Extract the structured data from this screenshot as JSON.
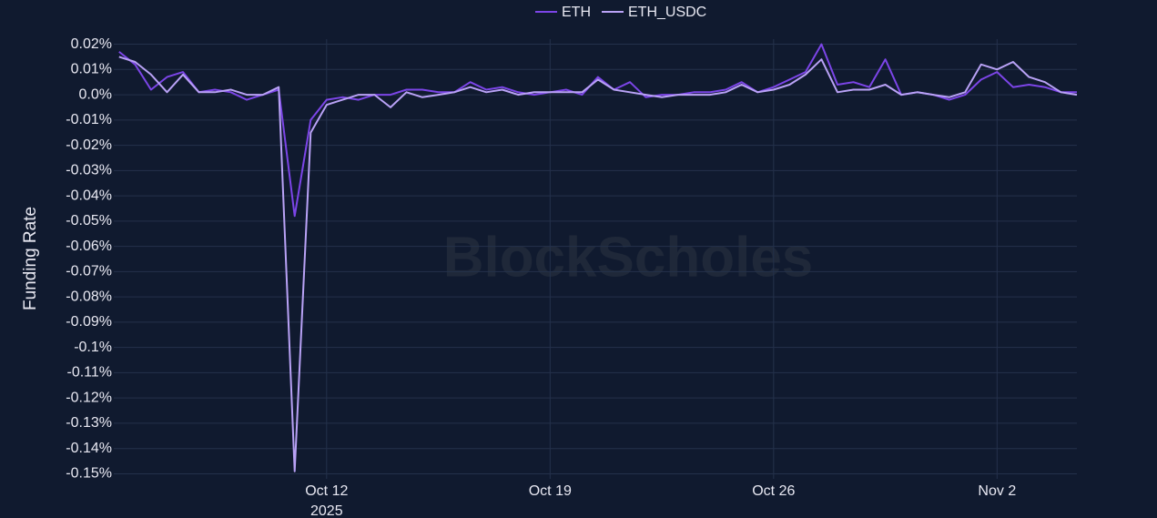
{
  "chart_data": {
    "type": "line",
    "ylabel": "Funding Rate",
    "watermark": "BlockScholes",
    "legend": "top",
    "grid": true,
    "x": [
      "2025-10-05T12:00",
      "2025-10-06T00:00",
      "2025-10-06T12:00",
      "2025-10-07T00:00",
      "2025-10-07T12:00",
      "2025-10-08T00:00",
      "2025-10-08T12:00",
      "2025-10-09T00:00",
      "2025-10-09T12:00",
      "2025-10-10T00:00",
      "2025-10-10T12:00",
      "2025-10-11T00:00",
      "2025-10-11T12:00",
      "2025-10-12T00:00",
      "2025-10-12T12:00",
      "2025-10-13T00:00",
      "2025-10-13T12:00",
      "2025-10-14T00:00",
      "2025-10-14T12:00",
      "2025-10-15T00:00",
      "2025-10-15T12:00",
      "2025-10-16T00:00",
      "2025-10-16T12:00",
      "2025-10-17T00:00",
      "2025-10-17T12:00",
      "2025-10-18T00:00",
      "2025-10-18T12:00",
      "2025-10-19T00:00",
      "2025-10-19T12:00",
      "2025-10-20T00:00",
      "2025-10-20T12:00",
      "2025-10-21T00:00",
      "2025-10-21T12:00",
      "2025-10-22T00:00",
      "2025-10-22T12:00",
      "2025-10-23T00:00",
      "2025-10-23T12:00",
      "2025-10-24T00:00",
      "2025-10-24T12:00",
      "2025-10-25T00:00",
      "2025-10-25T12:00",
      "2025-10-26T00:00",
      "2025-10-26T12:00",
      "2025-10-27T00:00",
      "2025-10-27T12:00",
      "2025-10-28T00:00",
      "2025-10-28T12:00",
      "2025-10-29T00:00",
      "2025-10-29T12:00",
      "2025-10-30T00:00",
      "2025-10-30T12:00",
      "2025-10-31T00:00",
      "2025-10-31T12:00",
      "2025-11-01T00:00",
      "2025-11-01T12:00",
      "2025-11-02T00:00",
      "2025-11-02T12:00",
      "2025-11-03T00:00",
      "2025-11-03T12:00",
      "2025-11-04T00:00",
      "2025-11-04T12:00"
    ],
    "series": [
      {
        "name": "ETH",
        "color": "#7c45e8",
        "values": [
          0.017,
          0.012,
          0.002,
          0.007,
          0.009,
          0.001,
          0.002,
          0.001,
          -0.002,
          0.0,
          0.002,
          -0.048,
          -0.01,
          -0.002,
          -0.001,
          -0.002,
          0.0,
          0.0,
          0.002,
          0.002,
          0.001,
          0.001,
          0.005,
          0.002,
          0.003,
          0.001,
          0.0,
          0.001,
          0.002,
          0.0,
          0.007,
          0.002,
          0.005,
          -0.001,
          0.0,
          0.0,
          0.001,
          0.001,
          0.002,
          0.005,
          0.001,
          0.003,
          0.006,
          0.009,
          0.02,
          0.004,
          0.005,
          0.003,
          0.014,
          0.0,
          0.001,
          0.0,
          -0.002,
          0.0,
          0.006,
          0.009,
          0.003,
          0.004,
          0.003,
          0.001,
          0.001
        ]
      },
      {
        "name": "ETH_USDC",
        "color": "#b9a2f6",
        "values": [
          0.015,
          0.013,
          0.008,
          0.001,
          0.008,
          0.001,
          0.001,
          0.002,
          0.0,
          0.0,
          0.003,
          -0.149,
          -0.015,
          -0.004,
          -0.002,
          0.0,
          0.0,
          -0.005,
          0.001,
          -0.001,
          0.0,
          0.001,
          0.003,
          0.001,
          0.002,
          0.0,
          0.001,
          0.001,
          0.001,
          0.001,
          0.006,
          0.002,
          0.001,
          0.0,
          -0.001,
          0.0,
          0.0,
          0.0,
          0.001,
          0.004,
          0.001,
          0.002,
          0.004,
          0.008,
          0.014,
          0.001,
          0.002,
          0.002,
          0.004,
          0.0,
          0.001,
          0.0,
          -0.001,
          0.001,
          0.012,
          0.01,
          0.013,
          0.007,
          0.005,
          0.001,
          0.0
        ]
      }
    ],
    "xlim": [
      "2025-10-05T08:00",
      "2025-11-04T12:00"
    ],
    "xticks": [
      {
        "value": "2025-10-12",
        "label": "Oct 12\n2025"
      },
      {
        "value": "2025-10-19",
        "label": "Oct 19"
      },
      {
        "value": "2025-10-26",
        "label": "Oct 26"
      },
      {
        "value": "2025-11-02",
        "label": "Nov 2"
      }
    ],
    "ylim": [
      -0.152,
      0.022
    ],
    "yticks": [
      {
        "value": 0.02,
        "label": "0.02%"
      },
      {
        "value": 0.01,
        "label": "0.01%"
      },
      {
        "value": 0,
        "label": "0.0%"
      },
      {
        "value": -0.01,
        "label": "-0.01%"
      },
      {
        "value": -0.02,
        "label": "-0.02%"
      },
      {
        "value": -0.03,
        "label": "-0.03%"
      },
      {
        "value": -0.04,
        "label": "-0.04%"
      },
      {
        "value": -0.05,
        "label": "-0.05%"
      },
      {
        "value": -0.06,
        "label": "-0.06%"
      },
      {
        "value": -0.07,
        "label": "-0.07%"
      },
      {
        "value": -0.08,
        "label": "-0.08%"
      },
      {
        "value": -0.09,
        "label": "-0.09%"
      },
      {
        "value": -0.1,
        "label": "-0.1%"
      },
      {
        "value": -0.11,
        "label": "-0.11%"
      },
      {
        "value": -0.12,
        "label": "-0.12%"
      },
      {
        "value": -0.13,
        "label": "-0.13%"
      },
      {
        "value": -0.14,
        "label": "-0.14%"
      },
      {
        "value": -0.15,
        "label": "-0.15%"
      }
    ]
  }
}
